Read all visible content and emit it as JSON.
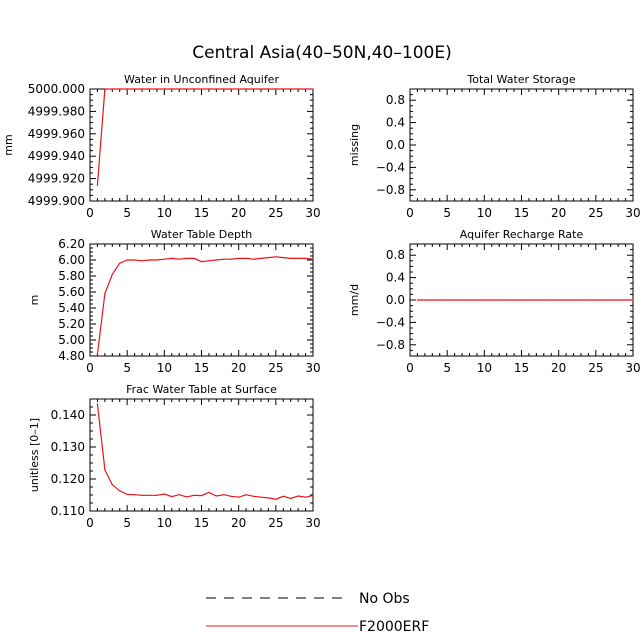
{
  "title": "Central Asia(40–50N,40–100E)",
  "colors": {
    "model": "#e8151b",
    "obs": "#000000",
    "axis": "#000000"
  },
  "legend": {
    "obs_label": "No Obs",
    "model_label": "F2000ERF"
  },
  "chart_data": [
    {
      "id": "p1",
      "type": "line",
      "title": "Water in Unconfined Aquifer",
      "ylabel": "mm",
      "xlabel": "",
      "xlim": [
        0,
        30
      ],
      "ylim": [
        4999.9,
        5000.0
      ],
      "xticks": [
        0,
        5,
        10,
        15,
        20,
        25,
        30
      ],
      "xtick_labels": [
        "0",
        "5",
        "10",
        "15",
        "20",
        "25",
        "30"
      ],
      "yticks": [
        4999.9,
        4999.92,
        4999.94,
        4999.96,
        4999.98,
        5000.0
      ],
      "ytick_labels": [
        "4999.900",
        "4999.920",
        "4999.940",
        "4999.960",
        "4999.980",
        "5000.000"
      ],
      "series": [
        {
          "name": "F2000ERF",
          "x": [
            1,
            2,
            3,
            4,
            5,
            6,
            7,
            8,
            9,
            10,
            11,
            12,
            13,
            14,
            15,
            16,
            17,
            18,
            19,
            20,
            21,
            22,
            23,
            24,
            25,
            26,
            27,
            28,
            29,
            30
          ],
          "y": [
            4999.914,
            5000.0,
            5000.0,
            5000.0,
            5000.0,
            5000.0,
            5000.0,
            5000.0,
            5000.0,
            5000.0,
            5000.0,
            5000.0,
            5000.0,
            5000.0,
            5000.0,
            5000.0,
            5000.0,
            5000.0,
            5000.0,
            5000.0,
            5000.0,
            5000.0,
            5000.0,
            5000.0,
            5000.0,
            5000.0,
            5000.0,
            5000.0,
            5000.0,
            5000.0
          ]
        }
      ]
    },
    {
      "id": "p2",
      "type": "line",
      "title": "Total Water Storage",
      "ylabel": "missing",
      "xlabel": "",
      "xlim": [
        0,
        30
      ],
      "ylim": [
        -1.0,
        1.0
      ],
      "xticks": [
        0,
        5,
        10,
        15,
        20,
        25,
        30
      ],
      "xtick_labels": [
        "0",
        "5",
        "10",
        "15",
        "20",
        "25",
        "30"
      ],
      "yticks": [
        -0.8,
        -0.4,
        0.0,
        0.4,
        0.8
      ],
      "ytick_labels": [
        "−0.8",
        "−0.4",
        "0.0",
        "0.4",
        "0.8"
      ],
      "series": []
    },
    {
      "id": "p3",
      "type": "line",
      "title": "Water Table Depth",
      "ylabel": "m",
      "xlabel": "",
      "xlim": [
        0,
        30
      ],
      "ylim": [
        4.8,
        6.2
      ],
      "xticks": [
        0,
        5,
        10,
        15,
        20,
        25,
        30
      ],
      "xtick_labels": [
        "0",
        "5",
        "10",
        "15",
        "20",
        "25",
        "30"
      ],
      "yticks": [
        4.8,
        5.0,
        5.2,
        5.4,
        5.6,
        5.8,
        6.0,
        6.2
      ],
      "ytick_labels": [
        "4.80",
        "5.00",
        "5.20",
        "5.40",
        "5.60",
        "5.80",
        "6.00",
        "6.20"
      ],
      "series": [
        {
          "name": "F2000ERF",
          "x": [
            1,
            2,
            3,
            4,
            5,
            6,
            7,
            8,
            9,
            10,
            11,
            12,
            13,
            14,
            15,
            16,
            17,
            18,
            19,
            20,
            21,
            22,
            23,
            24,
            25,
            26,
            27,
            28,
            29,
            30
          ],
          "y": [
            4.82,
            5.58,
            5.82,
            5.96,
            6.0,
            6.0,
            5.99,
            6.0,
            6.0,
            6.01,
            6.02,
            6.01,
            6.02,
            6.02,
            5.98,
            5.99,
            6.0,
            6.01,
            6.01,
            6.02,
            6.02,
            6.01,
            6.02,
            6.03,
            6.04,
            6.03,
            6.02,
            6.02,
            6.02,
            6.01
          ]
        }
      ]
    },
    {
      "id": "p4",
      "type": "line",
      "title": "Aquifer Recharge Rate",
      "ylabel": "mm/d",
      "xlabel": "",
      "xlim": [
        0,
        30
      ],
      "ylim": [
        -1.0,
        1.0
      ],
      "xticks": [
        0,
        5,
        10,
        15,
        20,
        25,
        30
      ],
      "xtick_labels": [
        "0",
        "5",
        "10",
        "15",
        "20",
        "25",
        "30"
      ],
      "yticks": [
        -0.8,
        -0.4,
        0.0,
        0.4,
        0.8
      ],
      "ytick_labels": [
        "−0.8",
        "−0.4",
        "0.0",
        "0.4",
        "0.8"
      ],
      "series": [
        {
          "name": "F2000ERF",
          "x": [
            1,
            2,
            3,
            4,
            5,
            6,
            7,
            8,
            9,
            10,
            11,
            12,
            13,
            14,
            15,
            16,
            17,
            18,
            19,
            20,
            21,
            22,
            23,
            24,
            25,
            26,
            27,
            28,
            29,
            30
          ],
          "y": [
            0,
            0,
            0,
            0,
            0,
            0,
            0,
            0,
            0,
            0,
            0,
            0,
            0,
            0,
            0,
            0,
            0,
            0,
            0,
            0,
            0,
            0,
            0,
            0,
            0,
            0,
            0,
            0,
            0,
            0
          ]
        }
      ]
    },
    {
      "id": "p5",
      "type": "line",
      "title": "Frac Water Table at Surface",
      "ylabel": "unitless [0–1]",
      "xlabel": "",
      "xlim": [
        0,
        30
      ],
      "ylim": [
        0.11,
        0.145
      ],
      "xticks": [
        0,
        5,
        10,
        15,
        20,
        25,
        30
      ],
      "xtick_labels": [
        "0",
        "5",
        "10",
        "15",
        "20",
        "25",
        "30"
      ],
      "yticks": [
        0.11,
        0.12,
        0.13,
        0.14
      ],
      "ytick_labels": [
        "0.110",
        "0.120",
        "0.130",
        "0.140"
      ],
      "series": [
        {
          "name": "F2000ERF",
          "x": [
            1,
            2,
            3,
            4,
            5,
            6,
            7,
            8,
            9,
            10,
            11,
            12,
            13,
            14,
            15,
            16,
            17,
            18,
            19,
            20,
            21,
            22,
            23,
            24,
            25,
            26,
            27,
            28,
            29,
            30
          ],
          "y": [
            0.1435,
            0.1228,
            0.1182,
            0.1163,
            0.1152,
            0.1151,
            0.1149,
            0.1149,
            0.1149,
            0.1153,
            0.1145,
            0.1151,
            0.1144,
            0.1149,
            0.1148,
            0.1158,
            0.1147,
            0.1151,
            0.1146,
            0.1143,
            0.1151,
            0.1146,
            0.1143,
            0.1141,
            0.1137,
            0.1146,
            0.1139,
            0.1147,
            0.1143,
            0.1148
          ]
        }
      ]
    }
  ]
}
